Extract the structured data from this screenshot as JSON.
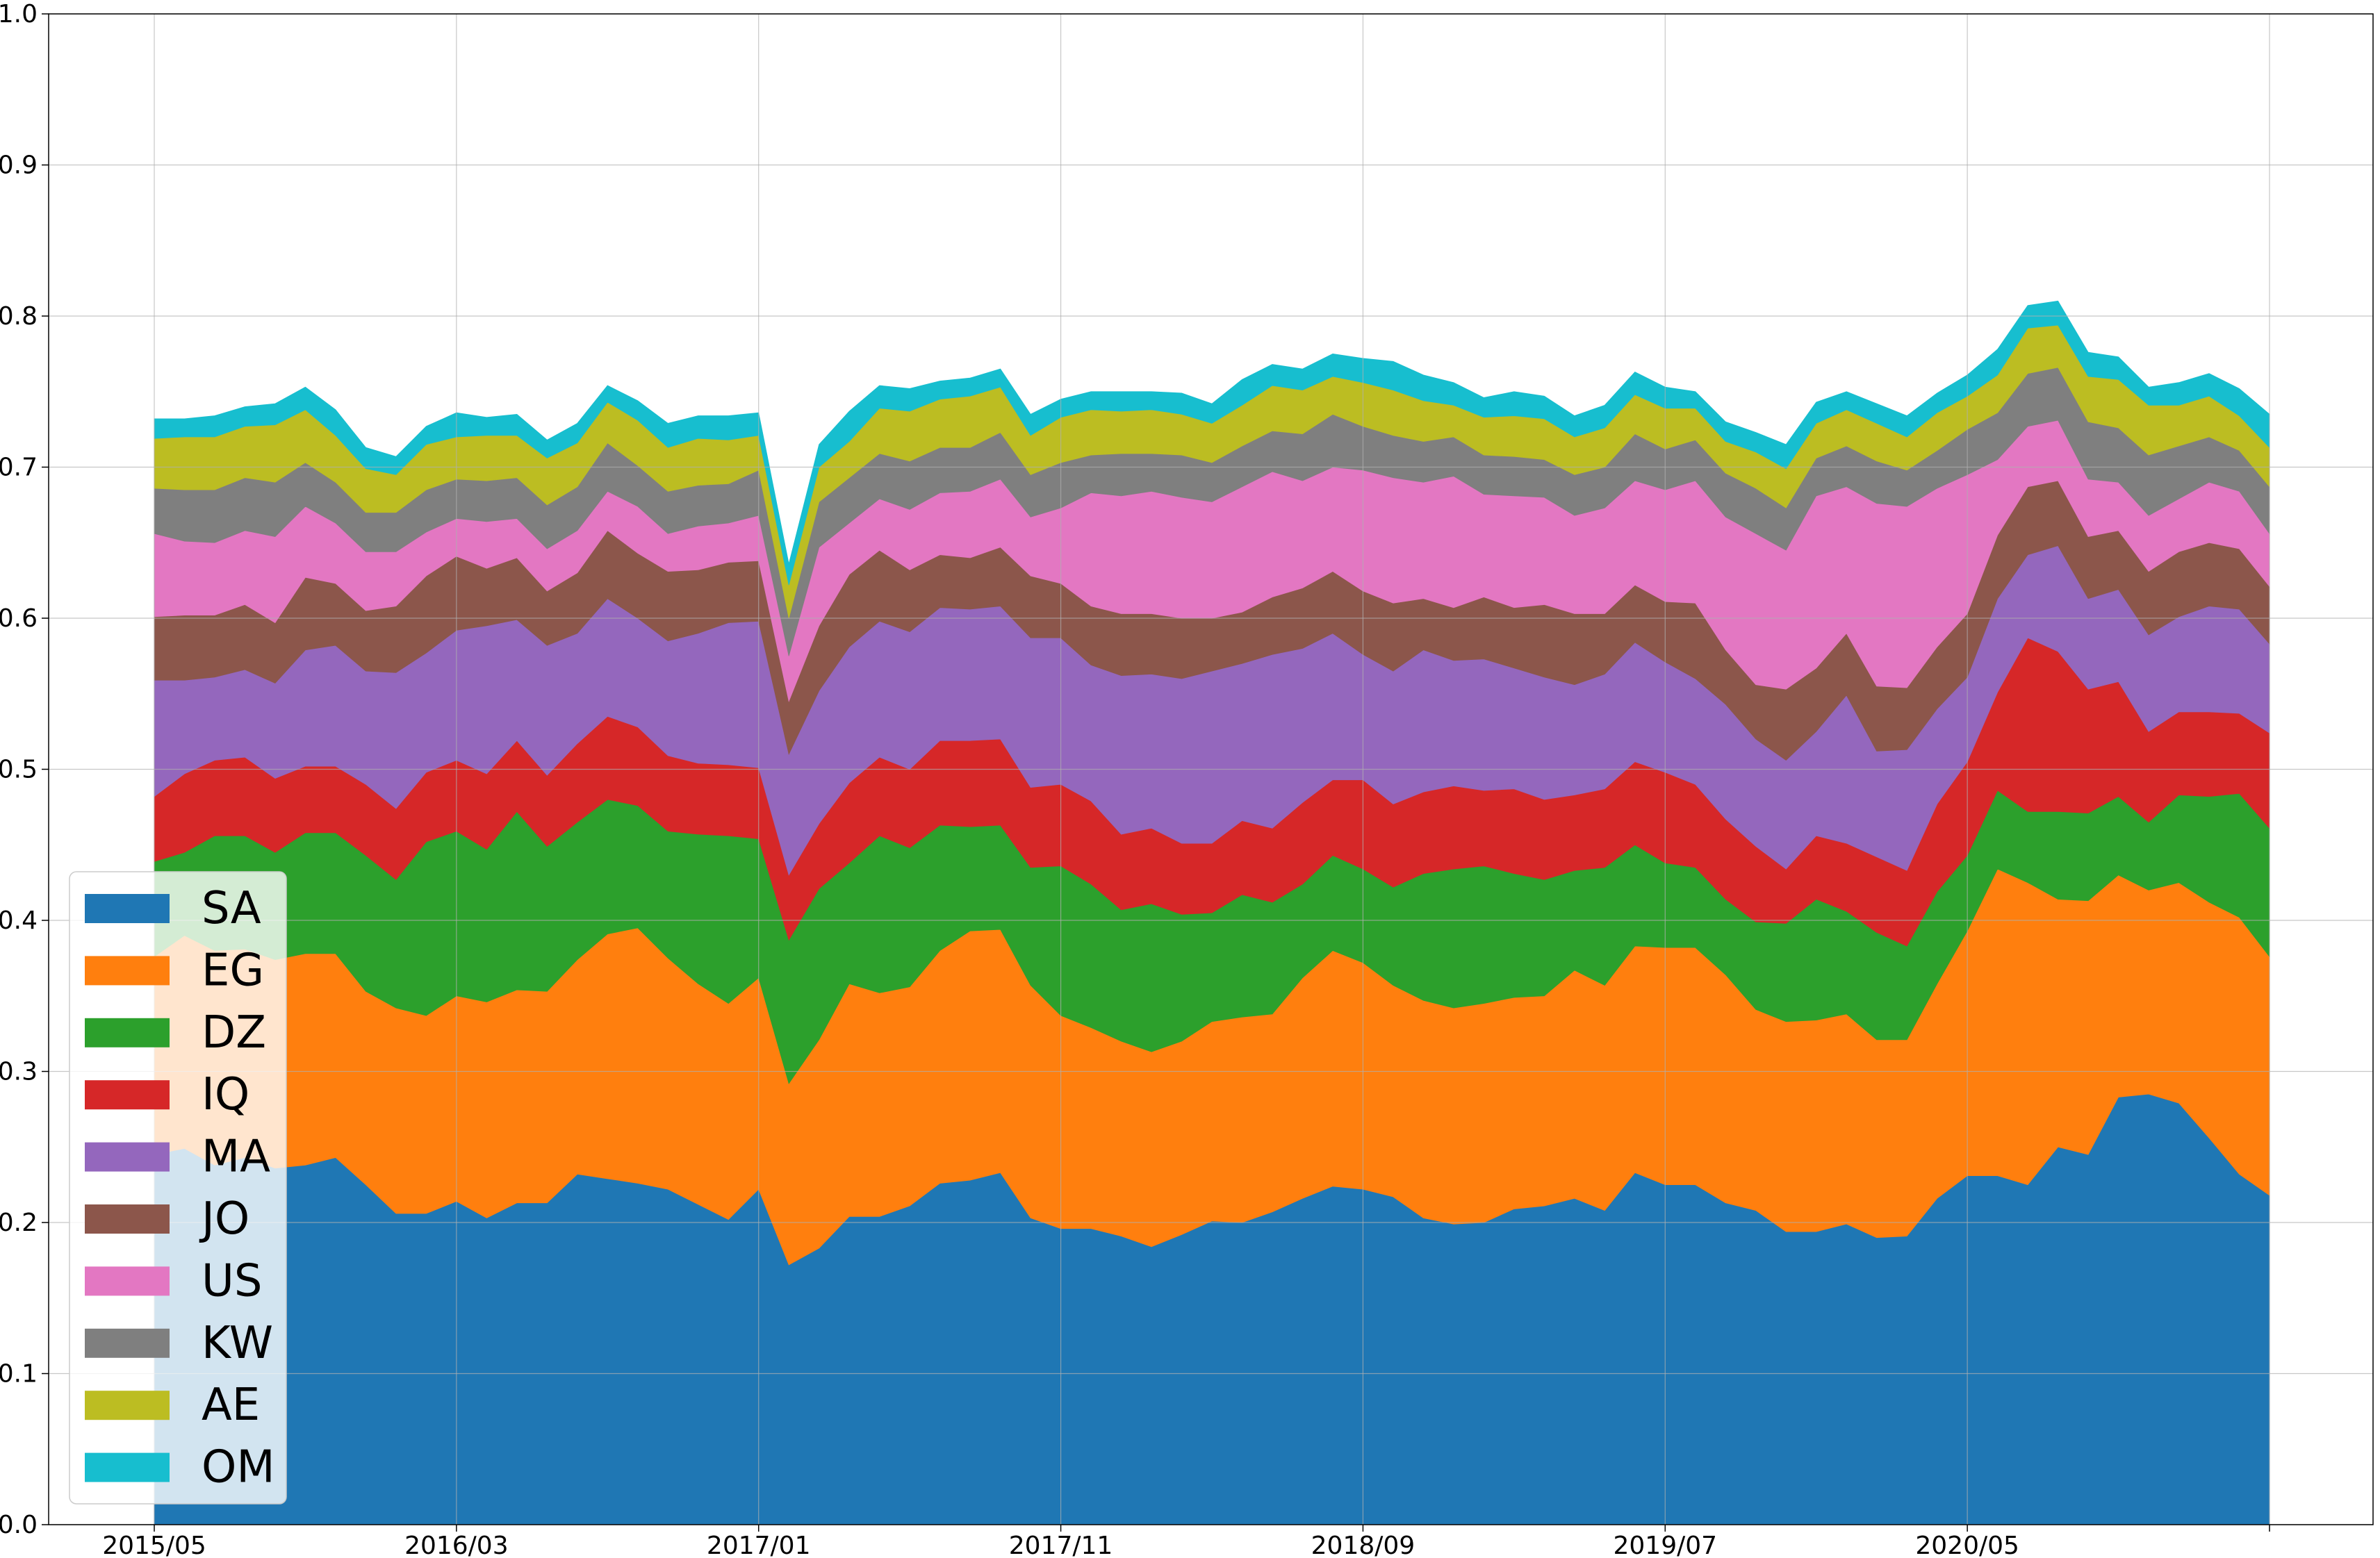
{
  "chart_data": {
    "type": "area",
    "stacked": true,
    "title": "",
    "xlabel": "",
    "ylabel": "",
    "ylim": [
      0,
      1.0
    ],
    "grid": true,
    "legend_position": "lower-left",
    "x_tick_labels": [
      "2015/05",
      "2016/03",
      "2017/01",
      "2017/11",
      "2018/09",
      "2019/07",
      "2020/05"
    ],
    "y_tick_labels": [
      "0.0",
      "0.1",
      "0.2",
      "0.3",
      "0.4",
      "0.5",
      "0.6",
      "0.7",
      "0.8",
      "0.9",
      "1.0"
    ],
    "x": [
      "2015/05",
      "2015/06",
      "2015/07",
      "2015/08",
      "2015/09",
      "2015/10",
      "2015/11",
      "2015/12",
      "2016/01",
      "2016/02",
      "2016/03",
      "2016/04",
      "2016/05",
      "2016/06",
      "2016/07",
      "2016/08",
      "2016/09",
      "2016/10",
      "2016/11",
      "2016/12",
      "2017/01",
      "2017/02",
      "2017/03",
      "2017/04",
      "2017/05",
      "2017/06",
      "2017/07",
      "2017/08",
      "2017/09",
      "2017/10",
      "2017/11",
      "2017/12",
      "2018/01",
      "2018/02",
      "2018/03",
      "2018/04",
      "2018/05",
      "2018/06",
      "2018/07",
      "2018/08",
      "2018/09",
      "2018/10",
      "2018/11",
      "2018/12",
      "2019/01",
      "2019/02",
      "2019/03",
      "2019/04",
      "2019/05",
      "2019/06",
      "2019/07",
      "2019/08",
      "2019/09",
      "2019/10",
      "2019/11",
      "2019/12",
      "2020/01",
      "2020/02",
      "2020/03",
      "2020/04",
      "2020/05",
      "2020/06",
      "2020/07",
      "2020/08",
      "2020/09",
      "2020/10",
      "2020/11",
      "2020/12",
      "2021/01",
      "2021/02",
      "2021/03"
    ],
    "series": [
      {
        "name": "SA",
        "color": "#1f77b4",
        "values": [
          0.245,
          0.249,
          0.238,
          0.243,
          0.236,
          0.238,
          0.243,
          0.225,
          0.206,
          0.206,
          0.214,
          0.203,
          0.213,
          0.213,
          0.232,
          0.229,
          0.226,
          0.222,
          0.212,
          0.202,
          0.222,
          0.172,
          0.183,
          0.204,
          0.204,
          0.211,
          0.226,
          0.228,
          0.233,
          0.203,
          0.196,
          0.196,
          0.191,
          0.184,
          0.192,
          0.201,
          0.2,
          0.207,
          0.216,
          0.224,
          0.222,
          0.217,
          0.203,
          0.199,
          0.2,
          0.209,
          0.211,
          0.216,
          0.208,
          0.233,
          0.225,
          0.225,
          0.213,
          0.208,
          0.194,
          0.194,
          0.199,
          0.19,
          0.191,
          0.216,
          0.231,
          0.231,
          0.225,
          0.25,
          0.245,
          0.283,
          0.285,
          0.279,
          0.256,
          0.232,
          0.218
        ]
      },
      {
        "name": "EG",
        "color": "#ff7f0e",
        "values": [
          0.131,
          0.141,
          0.142,
          0.138,
          0.138,
          0.14,
          0.135,
          0.128,
          0.136,
          0.131,
          0.136,
          0.143,
          0.141,
          0.14,
          0.142,
          0.162,
          0.169,
          0.153,
          0.146,
          0.143,
          0.14,
          0.12,
          0.138,
          0.154,
          0.148,
          0.145,
          0.154,
          0.165,
          0.161,
          0.154,
          0.141,
          0.133,
          0.129,
          0.129,
          0.128,
          0.132,
          0.136,
          0.131,
          0.146,
          0.156,
          0.15,
          0.14,
          0.144,
          0.143,
          0.145,
          0.14,
          0.139,
          0.151,
          0.149,
          0.15,
          0.157,
          0.157,
          0.151,
          0.133,
          0.139,
          0.14,
          0.139,
          0.131,
          0.13,
          0.142,
          0.162,
          0.203,
          0.2,
          0.164,
          0.168,
          0.147,
          0.135,
          0.146,
          0.156,
          0.17,
          0.158
        ]
      },
      {
        "name": "DZ",
        "color": "#2ca02c",
        "values": [
          0.063,
          0.055,
          0.076,
          0.075,
          0.071,
          0.08,
          0.08,
          0.09,
          0.085,
          0.115,
          0.109,
          0.101,
          0.118,
          0.096,
          0.091,
          0.089,
          0.081,
          0.084,
          0.099,
          0.111,
          0.092,
          0.095,
          0.1,
          0.08,
          0.104,
          0.092,
          0.083,
          0.069,
          0.069,
          0.078,
          0.099,
          0.095,
          0.087,
          0.098,
          0.084,
          0.072,
          0.081,
          0.074,
          0.062,
          0.063,
          0.062,
          0.065,
          0.084,
          0.092,
          0.091,
          0.082,
          0.077,
          0.066,
          0.078,
          0.067,
          0.056,
          0.053,
          0.05,
          0.058,
          0.065,
          0.08,
          0.068,
          0.071,
          0.062,
          0.061,
          0.05,
          0.052,
          0.047,
          0.058,
          0.058,
          0.052,
          0.045,
          0.058,
          0.07,
          0.082,
          0.085
        ]
      },
      {
        "name": "IQ",
        "color": "#d62728",
        "values": [
          0.043,
          0.052,
          0.05,
          0.052,
          0.049,
          0.044,
          0.044,
          0.047,
          0.047,
          0.046,
          0.047,
          0.05,
          0.047,
          0.047,
          0.052,
          0.055,
          0.052,
          0.05,
          0.047,
          0.047,
          0.047,
          0.043,
          0.043,
          0.053,
          0.052,
          0.052,
          0.056,
          0.057,
          0.057,
          0.053,
          0.054,
          0.055,
          0.05,
          0.05,
          0.047,
          0.046,
          0.049,
          0.049,
          0.054,
          0.05,
          0.059,
          0.055,
          0.054,
          0.055,
          0.05,
          0.056,
          0.053,
          0.05,
          0.052,
          0.055,
          0.06,
          0.055,
          0.053,
          0.05,
          0.036,
          0.042,
          0.045,
          0.05,
          0.05,
          0.058,
          0.062,
          0.065,
          0.115,
          0.106,
          0.082,
          0.076,
          0.06,
          0.055,
          0.056,
          0.053,
          0.063
        ]
      },
      {
        "name": "MA",
        "color": "#9467bd",
        "values": [
          0.077,
          0.062,
          0.055,
          0.058,
          0.063,
          0.077,
          0.08,
          0.075,
          0.09,
          0.079,
          0.086,
          0.098,
          0.08,
          0.086,
          0.073,
          0.078,
          0.072,
          0.076,
          0.086,
          0.094,
          0.097,
          0.08,
          0.088,
          0.09,
          0.09,
          0.091,
          0.088,
          0.087,
          0.088,
          0.099,
          0.097,
          0.09,
          0.105,
          0.102,
          0.109,
          0.114,
          0.104,
          0.115,
          0.102,
          0.097,
          0.083,
          0.088,
          0.094,
          0.083,
          0.087,
          0.08,
          0.081,
          0.073,
          0.076,
          0.079,
          0.073,
          0.07,
          0.076,
          0.071,
          0.072,
          0.069,
          0.098,
          0.07,
          0.08,
          0.063,
          0.056,
          0.062,
          0.055,
          0.07,
          0.06,
          0.061,
          0.064,
          0.063,
          0.07,
          0.069,
          0.059
        ]
      },
      {
        "name": "JO",
        "color": "#8c564b",
        "values": [
          0.042,
          0.043,
          0.041,
          0.043,
          0.04,
          0.048,
          0.041,
          0.04,
          0.044,
          0.051,
          0.049,
          0.038,
          0.041,
          0.036,
          0.04,
          0.045,
          0.043,
          0.046,
          0.042,
          0.04,
          0.04,
          0.035,
          0.043,
          0.048,
          0.047,
          0.041,
          0.035,
          0.034,
          0.039,
          0.041,
          0.036,
          0.039,
          0.041,
          0.04,
          0.04,
          0.035,
          0.034,
          0.038,
          0.04,
          0.041,
          0.042,
          0.045,
          0.034,
          0.035,
          0.041,
          0.04,
          0.048,
          0.047,
          0.04,
          0.038,
          0.04,
          0.05,
          0.036,
          0.036,
          0.047,
          0.042,
          0.041,
          0.043,
          0.041,
          0.041,
          0.042,
          0.042,
          0.045,
          0.043,
          0.041,
          0.039,
          0.042,
          0.043,
          0.042,
          0.04,
          0.038
        ]
      },
      {
        "name": "US",
        "color": "#e377c2",
        "values": [
          0.055,
          0.049,
          0.048,
          0.049,
          0.057,
          0.047,
          0.04,
          0.039,
          0.036,
          0.029,
          0.025,
          0.031,
          0.026,
          0.028,
          0.028,
          0.026,
          0.031,
          0.025,
          0.029,
          0.026,
          0.03,
          0.03,
          0.052,
          0.034,
          0.034,
          0.04,
          0.041,
          0.044,
          0.045,
          0.039,
          0.05,
          0.075,
          0.078,
          0.081,
          0.08,
          0.077,
          0.083,
          0.083,
          0.071,
          0.069,
          0.08,
          0.083,
          0.077,
          0.087,
          0.068,
          0.074,
          0.071,
          0.065,
          0.07,
          0.069,
          0.074,
          0.081,
          0.088,
          0.1,
          0.092,
          0.114,
          0.097,
          0.121,
          0.12,
          0.105,
          0.092,
          0.05,
          0.04,
          0.04,
          0.038,
          0.032,
          0.037,
          0.035,
          0.04,
          0.038,
          0.035
        ]
      },
      {
        "name": "KW",
        "color": "#7f7f7f",
        "values": [
          0.03,
          0.034,
          0.035,
          0.035,
          0.036,
          0.029,
          0.027,
          0.026,
          0.026,
          0.028,
          0.026,
          0.027,
          0.027,
          0.029,
          0.029,
          0.032,
          0.027,
          0.028,
          0.027,
          0.026,
          0.03,
          0.025,
          0.03,
          0.03,
          0.03,
          0.032,
          0.03,
          0.029,
          0.031,
          0.028,
          0.03,
          0.025,
          0.028,
          0.025,
          0.028,
          0.026,
          0.027,
          0.027,
          0.031,
          0.035,
          0.029,
          0.028,
          0.027,
          0.026,
          0.026,
          0.026,
          0.025,
          0.027,
          0.027,
          0.031,
          0.027,
          0.027,
          0.029,
          0.03,
          0.028,
          0.025,
          0.027,
          0.028,
          0.024,
          0.025,
          0.03,
          0.031,
          0.035,
          0.035,
          0.038,
          0.036,
          0.04,
          0.035,
          0.03,
          0.027,
          0.031
        ]
      },
      {
        "name": "AE",
        "color": "#bcbd22",
        "values": [
          0.033,
          0.035,
          0.035,
          0.034,
          0.038,
          0.035,
          0.031,
          0.029,
          0.025,
          0.03,
          0.028,
          0.03,
          0.028,
          0.031,
          0.029,
          0.027,
          0.03,
          0.029,
          0.031,
          0.029,
          0.023,
          0.022,
          0.023,
          0.024,
          0.03,
          0.033,
          0.032,
          0.034,
          0.03,
          0.026,
          0.03,
          0.03,
          0.028,
          0.029,
          0.027,
          0.026,
          0.027,
          0.03,
          0.029,
          0.025,
          0.029,
          0.03,
          0.027,
          0.021,
          0.025,
          0.027,
          0.027,
          0.025,
          0.026,
          0.026,
          0.027,
          0.021,
          0.021,
          0.024,
          0.026,
          0.023,
          0.024,
          0.025,
          0.022,
          0.025,
          0.022,
          0.025,
          0.03,
          0.028,
          0.03,
          0.032,
          0.033,
          0.027,
          0.027,
          0.023,
          0.026
        ]
      },
      {
        "name": "OM",
        "color": "#17becf",
        "values": [
          0.013,
          0.012,
          0.014,
          0.013,
          0.014,
          0.015,
          0.017,
          0.014,
          0.012,
          0.012,
          0.016,
          0.012,
          0.014,
          0.012,
          0.013,
          0.011,
          0.013,
          0.016,
          0.015,
          0.016,
          0.015,
          0.014,
          0.015,
          0.02,
          0.015,
          0.015,
          0.012,
          0.012,
          0.012,
          0.014,
          0.012,
          0.012,
          0.013,
          0.012,
          0.014,
          0.013,
          0.017,
          0.014,
          0.014,
          0.015,
          0.016,
          0.019,
          0.017,
          0.015,
          0.013,
          0.016,
          0.015,
          0.014,
          0.015,
          0.015,
          0.014,
          0.011,
          0.013,
          0.013,
          0.016,
          0.014,
          0.012,
          0.013,
          0.014,
          0.013,
          0.014,
          0.017,
          0.015,
          0.016,
          0.016,
          0.015,
          0.012,
          0.015,
          0.015,
          0.018,
          0.022
        ]
      }
    ]
  }
}
